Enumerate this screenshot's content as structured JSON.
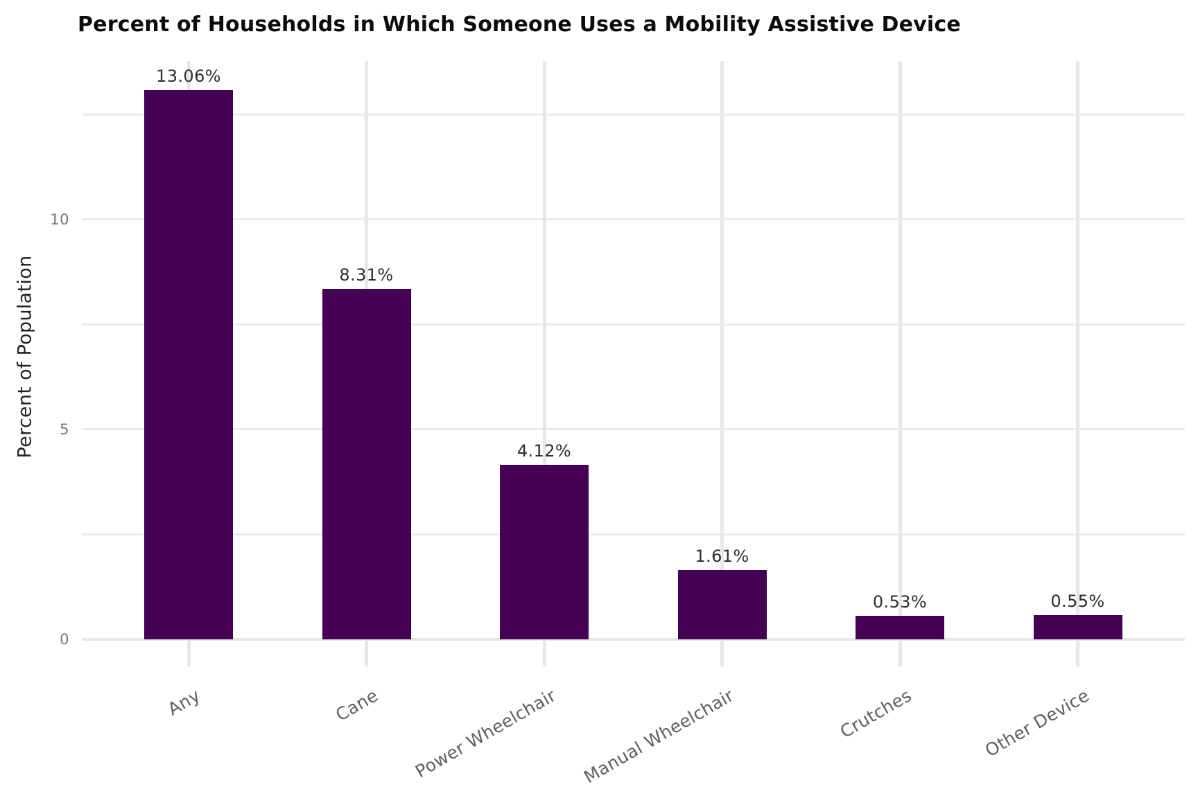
{
  "title": "Percent of Households in Which Someone Uses a Mobility Assistive Device",
  "chart_data": {
    "type": "bar",
    "title": "Percent of Households in Which Someone Uses a Mobility Assistive Device",
    "xlabel": "",
    "ylabel": "Percent of Population",
    "categories": [
      "Any",
      "Cane",
      "Power Wheelchair",
      "Manual Wheelchair",
      "Crutches",
      "Other Device"
    ],
    "values": [
      13.06,
      8.31,
      4.12,
      1.61,
      0.53,
      0.55
    ],
    "value_labels": [
      "13.06%",
      "8.31%",
      "4.12%",
      "1.61%",
      "0.53%",
      "0.55%"
    ],
    "y_tick_labels": [
      "0",
      "5",
      "10"
    ],
    "y_tick_values": [
      0,
      5,
      10
    ],
    "gridline_values": [
      2.5,
      5,
      7.5,
      10,
      12.5
    ],
    "ylim": [
      0,
      13.75
    ],
    "grid": true,
    "legend": "none",
    "bar_color": "#440154",
    "background_color": "#ffffff"
  },
  "colors": {
    "bar": "#440154",
    "gridline": "#ebebeb",
    "axis_line": "#e7e7e7",
    "title_text": "#0b0b0b",
    "value_label_text": "#2d2d2d",
    "tick_label_text": "#757575",
    "category_label_text": "#5f5f5f",
    "y_axis_title_text": "#212121"
  }
}
